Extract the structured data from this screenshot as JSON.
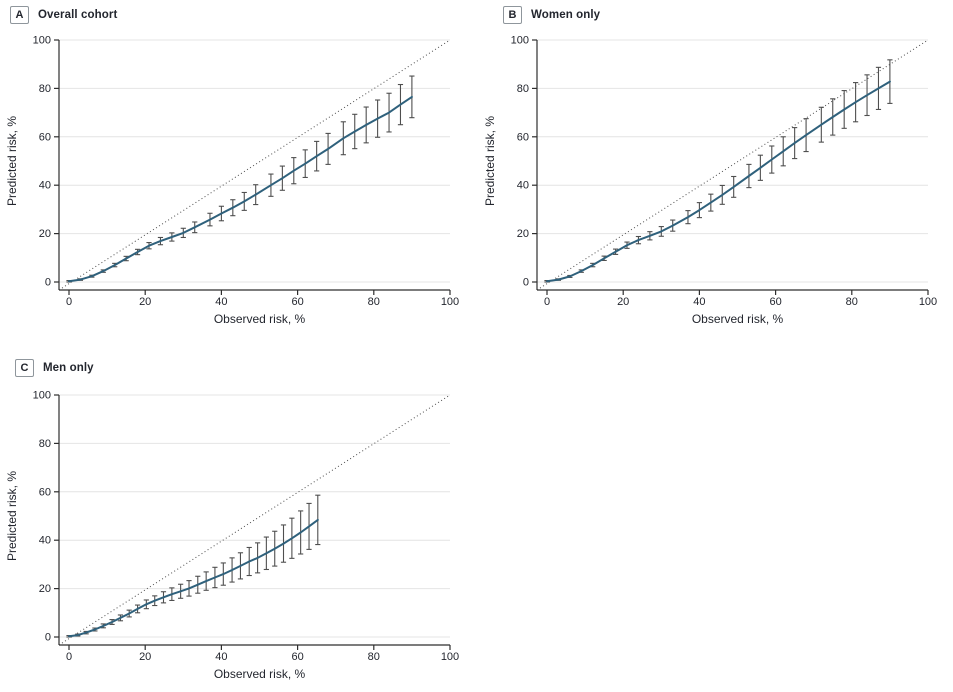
{
  "colors": {
    "curve": "#2f617c",
    "error_bar": "#4f4f4f",
    "grid": "#e4e4e4",
    "axis": "#2e2e2e",
    "reference_line": "#4d4d4d",
    "text": "#23262e",
    "panel_letter_border": "#8f969c",
    "background": "#ffffff"
  },
  "chart_data": [
    {
      "type": "line",
      "panel_label": "A",
      "title": "Overall cohort",
      "xlabel": "Observed risk, %",
      "ylabel": "Predicted risk, %",
      "xlim": [
        0,
        100
      ],
      "ylim": [
        0,
        100
      ],
      "xticks": [
        0,
        20,
        40,
        60,
        80,
        100
      ],
      "yticks": [
        0,
        20,
        40,
        60,
        80,
        100
      ],
      "grid": "horizontal gridlines at y ticks",
      "reference_line": "dotted identity line y = x from axis corner to (100,100)",
      "legend": "none",
      "series": [
        {
          "name": "calibration curve with error bars",
          "x": [
            0,
            3,
            6,
            9,
            12,
            15,
            18,
            21,
            24,
            27,
            30,
            33,
            37,
            40,
            43,
            46,
            49,
            53,
            56,
            59,
            62,
            65,
            68,
            72,
            75,
            78,
            81,
            84,
            87,
            90
          ],
          "y": [
            0.3,
            1,
            2.4,
            4.5,
            7,
            9.7,
            12.4,
            15,
            16.9,
            18.6,
            20.3,
            22.6,
            25.8,
            28.3,
            30.7,
            33.3,
            36.1,
            40,
            42.9,
            46,
            48.9,
            52,
            55,
            59.4,
            62.2,
            64.9,
            67.5,
            70,
            73.3,
            76.5
          ],
          "err": [
            0.3,
            0.3,
            0.4,
            0.5,
            0.7,
            0.9,
            1.1,
            1.3,
            1.5,
            1.7,
            1.9,
            2.2,
            2.6,
            3,
            3.3,
            3.7,
            4.1,
            4.6,
            5,
            5.4,
            5.7,
            6.1,
            6.4,
            6.8,
            7.1,
            7.4,
            7.7,
            8,
            8.3,
            8.6
          ]
        }
      ]
    },
    {
      "type": "line",
      "panel_label": "B",
      "title": "Women only",
      "xlabel": "Observed risk, %",
      "ylabel": "Predicted risk, %",
      "xlim": [
        0,
        100
      ],
      "ylim": [
        0,
        100
      ],
      "xticks": [
        0,
        20,
        40,
        60,
        80,
        100
      ],
      "yticks": [
        0,
        20,
        40,
        60,
        80,
        100
      ],
      "grid": "horizontal gridlines at y ticks",
      "reference_line": "dotted identity line y = x from axis corner to (100,100)",
      "legend": "none",
      "series": [
        {
          "name": "calibration curve with error bars",
          "x": [
            0,
            3,
            6,
            9,
            12,
            15,
            18,
            21,
            24,
            27,
            30,
            33,
            37,
            40,
            43,
            46,
            49,
            53,
            56,
            59,
            62,
            65,
            68,
            72,
            75,
            78,
            81,
            84,
            87,
            90
          ],
          "y": [
            0.3,
            1,
            2.3,
            4.5,
            7,
            9.8,
            12.5,
            15.2,
            17.3,
            19.1,
            20.9,
            23.3,
            26.8,
            29.7,
            32.8,
            36,
            39.3,
            43.8,
            47.2,
            50.6,
            54,
            57.4,
            60.7,
            65,
            68.2,
            71.3,
            74.3,
            77.2,
            80,
            82.8
          ],
          "err": [
            0.3,
            0.3,
            0.4,
            0.5,
            0.7,
            0.9,
            1.1,
            1.3,
            1.5,
            1.7,
            2,
            2.3,
            2.7,
            3.1,
            3.5,
            3.9,
            4.3,
            4.8,
            5.2,
            5.6,
            6,
            6.4,
            6.8,
            7.2,
            7.5,
            7.8,
            8.1,
            8.4,
            8.7,
            9
          ]
        }
      ]
    },
    {
      "type": "line",
      "panel_label": "C",
      "title": "Men only",
      "xlabel": "Observed risk, %",
      "ylabel": "Predicted risk, %",
      "xlim": [
        0,
        100
      ],
      "ylim": [
        0,
        100
      ],
      "xticks": [
        0,
        20,
        40,
        60,
        80,
        100
      ],
      "yticks": [
        0,
        20,
        40,
        60,
        80,
        100
      ],
      "grid": "horizontal gridlines at y ticks",
      "reference_line": "dotted identity line y = x from axis corner to (100,100)",
      "legend": "none",
      "series": [
        {
          "name": "calibration curve with error bars",
          "x": [
            0,
            2.3,
            4.5,
            6.8,
            9,
            11.3,
            13.5,
            15.8,
            18,
            20.3,
            22.5,
            24.8,
            27,
            29.3,
            31.5,
            33.8,
            36,
            38.3,
            40.5,
            42.8,
            45,
            47.3,
            49.5,
            51.8,
            54,
            56.3,
            58.5,
            60.8,
            63,
            65.3
          ],
          "y": [
            0.3,
            0.8,
            1.8,
            3.1,
            4.6,
            6.2,
            7.9,
            9.7,
            11.6,
            13.5,
            15,
            16.4,
            17.7,
            18.9,
            20.1,
            21.6,
            23.1,
            24.6,
            26,
            27.7,
            29.4,
            31.2,
            32.7,
            34.6,
            36.5,
            38.6,
            40.8,
            43.2,
            45.7,
            48.4
          ],
          "err": [
            0.3,
            0.4,
            0.5,
            0.6,
            0.8,
            1,
            1.2,
            1.4,
            1.6,
            1.8,
            2,
            2.3,
            2.6,
            2.9,
            3.2,
            3.5,
            3.8,
            4.2,
            4.6,
            5,
            5.4,
            5.8,
            6.2,
            6.7,
            7.2,
            7.7,
            8.3,
            8.9,
            9.5,
            10.2
          ]
        }
      ]
    }
  ]
}
